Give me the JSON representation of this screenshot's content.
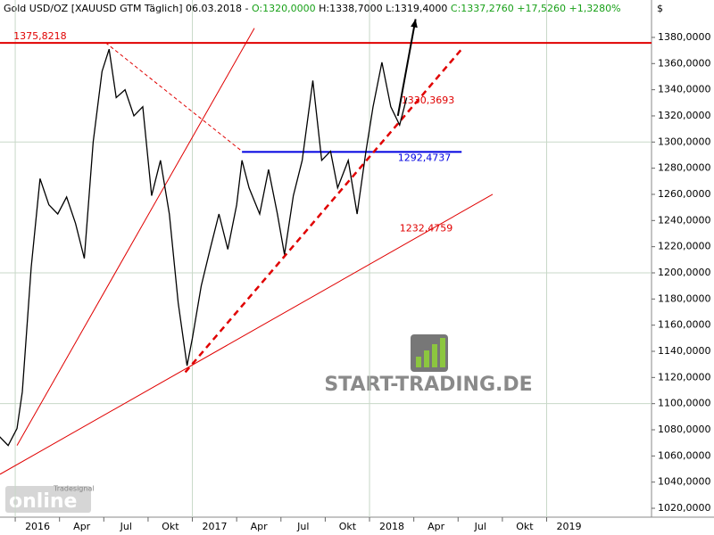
{
  "chart_data": {
    "type": "line",
    "header": [
      {
        "text": "Gold USD/OZ [XAUUSD GTM  Täglich] 06.03.2018 - ",
        "color": "#000000"
      },
      {
        "text": "O:1320,0000",
        "color": "#18a018"
      },
      {
        "text": " H:1338,7000 L:1319,4000 ",
        "color": "#000000"
      },
      {
        "text": "C:1337,2760 +17,5260 +1,3280%",
        "color": "#18a018"
      }
    ],
    "y_unit": "$",
    "watermark": "START-TRADING.DE",
    "logo": "online",
    "logo_small": "Tradesignal",
    "color": "#000000",
    "x": [
      2015.91,
      2015.96,
      2016.01,
      2016.04,
      2016.09,
      2016.14,
      2016.19,
      2016.24,
      2016.29,
      2016.34,
      2016.39,
      2016.44,
      2016.49,
      2016.53,
      2016.57,
      2016.62,
      2016.67,
      2016.72,
      2016.77,
      2016.82,
      2016.87,
      2016.92,
      2016.97,
      2017.0,
      2017.05,
      2017.1,
      2017.15,
      2017.2,
      2017.25,
      2017.28,
      2017.32,
      2017.38,
      2017.43,
      2017.48,
      2017.52,
      2017.57,
      2017.62,
      2017.68,
      2017.73,
      2017.78,
      2017.82,
      2017.88,
      2017.93,
      2017.98,
      2018.02,
      2018.07,
      2018.12,
      2018.17,
      2018.21
    ],
    "values": [
      1075,
      1068,
      1081,
      1109,
      1204,
      1272,
      1252,
      1245,
      1258,
      1238,
      1211,
      1300,
      1354,
      1371,
      1334,
      1340,
      1320,
      1327,
      1259,
      1286,
      1245,
      1177,
      1129,
      1150,
      1190,
      1218,
      1245,
      1218,
      1252,
      1286,
      1265,
      1245,
      1279,
      1245,
      1214,
      1259,
      1286,
      1347,
      1286,
      1293,
      1265,
      1286,
      1245,
      1293,
      1327,
      1361,
      1327,
      1313,
      1334
    ],
    "xlim": [
      2015.914,
      2019.592
    ],
    "ylim": [
      1013.2,
      1408.6
    ],
    "yticks": [
      {
        "value": 1020,
        "label": "1020,0000"
      },
      {
        "value": 1040,
        "label": "1040,0000"
      },
      {
        "value": 1060,
        "label": "1060,0000"
      },
      {
        "value": 1080,
        "label": "1080,0000"
      },
      {
        "value": 1100,
        "label": "1100,0000"
      },
      {
        "value": 1120,
        "label": "1120,0000"
      },
      {
        "value": 1140,
        "label": "1140,0000"
      },
      {
        "value": 1160,
        "label": "1160,0000"
      },
      {
        "value": 1180,
        "label": "1180,0000"
      },
      {
        "value": 1200,
        "label": "1200,0000"
      },
      {
        "value": 1220,
        "label": "1220,0000"
      },
      {
        "value": 1240,
        "label": "1240,0000"
      },
      {
        "value": 1260,
        "label": "1260,0000"
      },
      {
        "value": 1280,
        "label": "1280,0000"
      },
      {
        "value": 1300,
        "label": "1300,0000"
      },
      {
        "value": 1320,
        "label": "1320,0000"
      },
      {
        "value": 1340,
        "label": "1340,0000"
      },
      {
        "value": 1360,
        "label": "1360,0000"
      },
      {
        "value": 1380,
        "label": "1380,0000"
      }
    ],
    "xticks": [
      {
        "value": 2016,
        "label": "2016"
      },
      {
        "value": 2016.25,
        "label": "Apr"
      },
      {
        "value": 2016.5,
        "label": "Jul"
      },
      {
        "value": 2016.75,
        "label": "Okt"
      },
      {
        "value": 2017,
        "label": "2017"
      },
      {
        "value": 2017.25,
        "label": "Apr"
      },
      {
        "value": 2017.5,
        "label": "Jul"
      },
      {
        "value": 2017.75,
        "label": "Okt"
      },
      {
        "value": 2018,
        "label": "2018"
      },
      {
        "value": 2018.25,
        "label": "Apr"
      },
      {
        "value": 2018.5,
        "label": "Jul"
      },
      {
        "value": 2018.75,
        "label": "Okt"
      },
      {
        "value": 2019,
        "label": "2019"
      }
    ],
    "ygrid": [
      1100,
      1200,
      1300
    ],
    "xgrid": [
      2016,
      2017,
      2018,
      2019
    ],
    "levels": [
      {
        "value": 1375.8218,
        "label": "1375,8218",
        "color": "#e00000",
        "x": [
          2015.914,
          2019.592
        ],
        "label_x": 2015.99
      },
      {
        "value": 1292.4737,
        "label": "1292,4737",
        "color": "#0000e0",
        "x": [
          2017.28,
          2018.52
        ],
        "label_x": 2018.16
      }
    ],
    "trend_labels": [
      {
        "value": 1330.3693,
        "label": "1330,3693",
        "color": "#e00000",
        "x": 2018.18
      },
      {
        "value": 1232.4759,
        "label": "1232,4759",
        "color": "#e00000",
        "x": 2018.17
      }
    ],
    "trendlines": [
      {
        "x": [
          2015.914,
          2018.695
        ],
        "y": [
          1046,
          1260
        ],
        "color": "#e00000",
        "width": 1,
        "dash": false
      },
      {
        "x": [
          2016.01,
          2017.35
        ],
        "y": [
          1068,
          1387
        ],
        "color": "#e00000",
        "width": 1,
        "dash": false
      },
      {
        "x": [
          2016.96,
          2018.52
        ],
        "y": [
          1124,
          1371
        ],
        "color": "#e00000",
        "width": 2.5,
        "dash": true
      },
      {
        "x": [
          2016.51,
          2017.28
        ],
        "y": [
          1376,
          1293
        ],
        "color": "#e00000",
        "width": 1,
        "dash": true
      }
    ],
    "arrow": {
      "x": [
        2018.16,
        2018.26
      ],
      "y": [
        1320,
        1394
      ],
      "color": "#000000"
    }
  }
}
